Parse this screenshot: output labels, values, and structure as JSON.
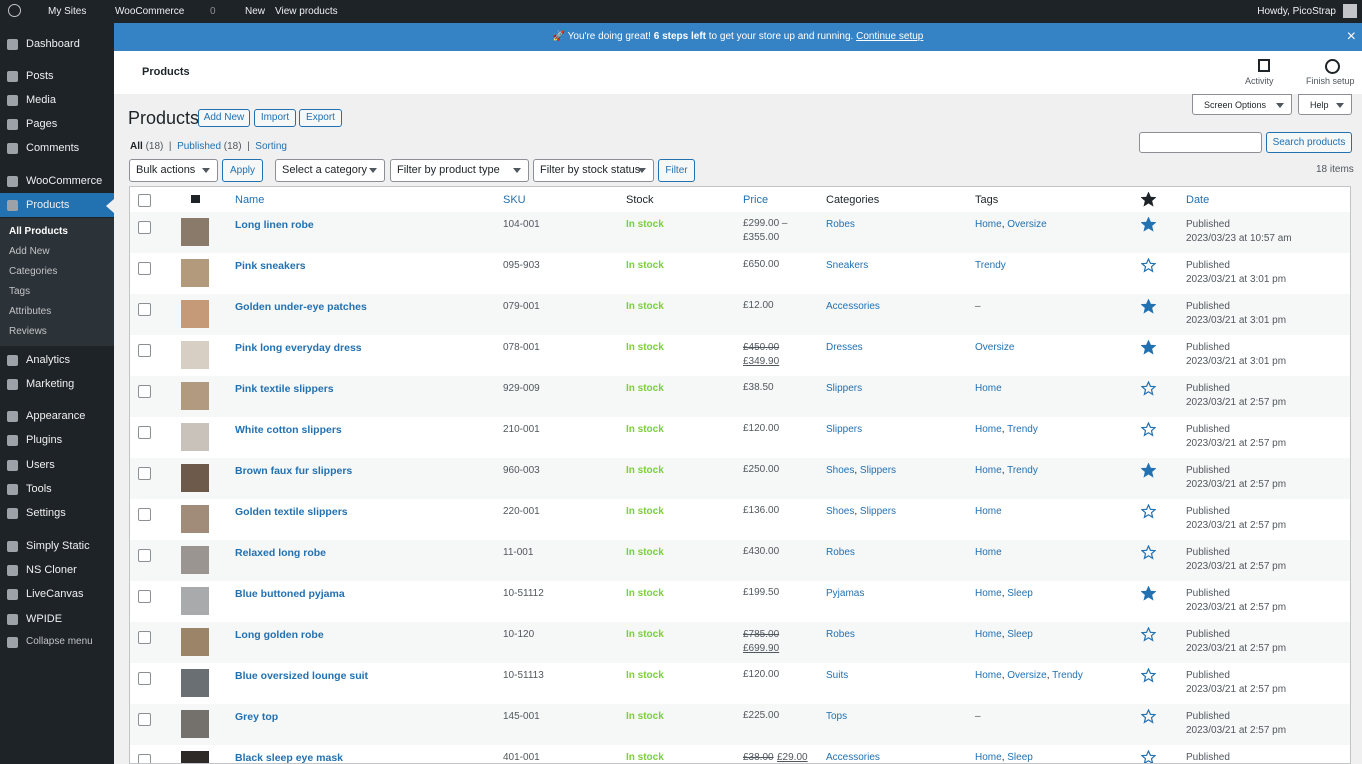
{
  "admin_bar": {
    "items": [
      "My Sites",
      "WooCommerce",
      "0",
      "New",
      "View products"
    ],
    "account": "Howdy, PicoStrap"
  },
  "menu": {
    "items": [
      "Dashboard",
      "Posts",
      "Media",
      "Pages",
      "Comments",
      "WooCommerce",
      "Products",
      "Analytics",
      "Marketing",
      "Appearance",
      "Plugins",
      "Users",
      "Tools",
      "Settings",
      "Simply Static",
      "NS Cloner",
      "LiveCanvas",
      "WPIDE",
      "Collapse menu"
    ],
    "current": 6,
    "submenu": [
      "All Products",
      "Add New",
      "Categories",
      "Tags",
      "Attributes",
      "Reviews"
    ],
    "submenu_current": 0
  },
  "notice": {
    "icon": "🚀",
    "text_before": "You're doing great!",
    "bold": "6 steps left",
    "text_after": "to get your store up and running.",
    "link": "Continue setup"
  },
  "header": {
    "title": "Products",
    "actions": [
      "Activity",
      "Finish setup"
    ]
  },
  "screen_meta": [
    "Screen Options",
    "Help"
  ],
  "page": {
    "title": "Products",
    "buttons": [
      "Add New",
      "Import",
      "Export"
    ],
    "views": [
      {
        "label": "All",
        "count": "(18)"
      },
      {
        "label": "Published",
        "count": "(18)"
      },
      {
        "label": "Sorting"
      }
    ],
    "search_button": "Search products",
    "filters": {
      "bulk": "Bulk actions",
      "apply": "Apply",
      "selects": [
        "Select a category",
        "Filter by product type",
        "Filter by stock status"
      ],
      "filter": "Filter"
    },
    "items_count": "18 items"
  },
  "table": {
    "columns": {
      "name": "Name",
      "sku": "SKU",
      "stock": "Stock",
      "price": "Price",
      "categories": "Categories",
      "tags": "Tags",
      "date": "Date"
    },
    "rows": [
      {
        "name": "Long linen robe",
        "sku": "104-001",
        "stock": "In stock",
        "price": "£299.00 – £355.00",
        "categories": [
          "Robes"
        ],
        "tags": [
          "Home",
          "Oversize"
        ],
        "featured": true,
        "status": "Published",
        "date": "2023/03/23 at 10:57 am"
      },
      {
        "name": "Pink sneakers",
        "sku": "095-903",
        "stock": "In stock",
        "price": "£650.00",
        "categories": [
          "Sneakers"
        ],
        "tags": [
          "Trendy"
        ],
        "featured": false,
        "status": "Published",
        "date": "2023/03/21 at 3:01 pm"
      },
      {
        "name": "Golden under-eye patches",
        "sku": "079-001",
        "stock": "In stock",
        "price": "£12.00",
        "categories": [
          "Accessories"
        ],
        "tags": "–",
        "featured": true,
        "status": "Published",
        "date": "2023/03/21 at 3:01 pm"
      },
      {
        "name": "Pink long everyday dress",
        "sku": "078-001",
        "stock": "In stock",
        "old_price": "£450.00",
        "price": "£349.90",
        "categories": [
          "Dresses"
        ],
        "tags": [
          "Oversize"
        ],
        "featured": true,
        "status": "Published",
        "date": "2023/03/21 at 3:01 pm"
      },
      {
        "name": "Pink textile slippers",
        "sku": "929-009",
        "stock": "In stock",
        "price": "£38.50",
        "categories": [
          "Slippers"
        ],
        "tags": [
          "Home"
        ],
        "featured": false,
        "status": "Published",
        "date": "2023/03/21 at 2:57 pm"
      },
      {
        "name": "White cotton slippers",
        "sku": "210-001",
        "stock": "In stock",
        "price": "£120.00",
        "categories": [
          "Slippers"
        ],
        "tags": [
          "Home",
          "Trendy"
        ],
        "featured": false,
        "status": "Published",
        "date": "2023/03/21 at 2:57 pm"
      },
      {
        "name": "Brown faux fur slippers",
        "sku": "960-003",
        "stock": "In stock",
        "price": "£250.00",
        "categories": [
          "Shoes",
          "Slippers"
        ],
        "tags": [
          "Home",
          "Trendy"
        ],
        "featured": true,
        "status": "Published",
        "date": "2023/03/21 at 2:57 pm"
      },
      {
        "name": "Golden textile slippers",
        "sku": "220-001",
        "stock": "In stock",
        "price": "£136.00",
        "categories": [
          "Shoes",
          "Slippers"
        ],
        "tags": [
          "Home"
        ],
        "featured": false,
        "status": "Published",
        "date": "2023/03/21 at 2:57 pm"
      },
      {
        "name": "Relaxed long robe",
        "sku": "11-001",
        "stock": "In stock",
        "price": "£430.00",
        "categories": [
          "Robes"
        ],
        "tags": [
          "Home"
        ],
        "featured": false,
        "status": "Published",
        "date": "2023/03/21 at 2:57 pm"
      },
      {
        "name": "Blue buttoned pyjama",
        "sku": "10-51112",
        "stock": "In stock",
        "price": "£199.50",
        "categories": [
          "Pyjamas"
        ],
        "tags": [
          "Home",
          "Sleep"
        ],
        "featured": true,
        "status": "Published",
        "date": "2023/03/21 at 2:57 pm"
      },
      {
        "name": "Long golden robe",
        "sku": "10-120",
        "stock": "In stock",
        "old_price": "£785.00",
        "price": "£699.90",
        "categories": [
          "Robes"
        ],
        "tags": [
          "Home",
          "Sleep"
        ],
        "featured": false,
        "status": "Published",
        "date": "2023/03/21 at 2:57 pm"
      },
      {
        "name": "Blue oversized lounge suit",
        "sku": "10-51113",
        "stock": "In stock",
        "price": "£120.00",
        "categories": [
          "Suits"
        ],
        "tags": [
          "Home",
          "Oversize",
          "Trendy"
        ],
        "featured": false,
        "status": "Published",
        "date": "2023/03/21 at 2:57 pm"
      },
      {
        "name": "Grey top",
        "sku": "145-001",
        "stock": "In stock",
        "price": "£225.00",
        "categories": [
          "Tops"
        ],
        "tags": "–",
        "featured": false,
        "status": "Published",
        "date": "2023/03/21 at 2:57 pm"
      },
      {
        "name": "Black sleep eye mask",
        "sku": "401-001",
        "stock": "In stock",
        "old_price": "£38.00",
        "price": "£29.00",
        "price_inline": true,
        "categories": [
          "Accessories"
        ],
        "tags": [
          "Home",
          "Sleep"
        ],
        "featured": false,
        "status": "Published"
      }
    ]
  }
}
